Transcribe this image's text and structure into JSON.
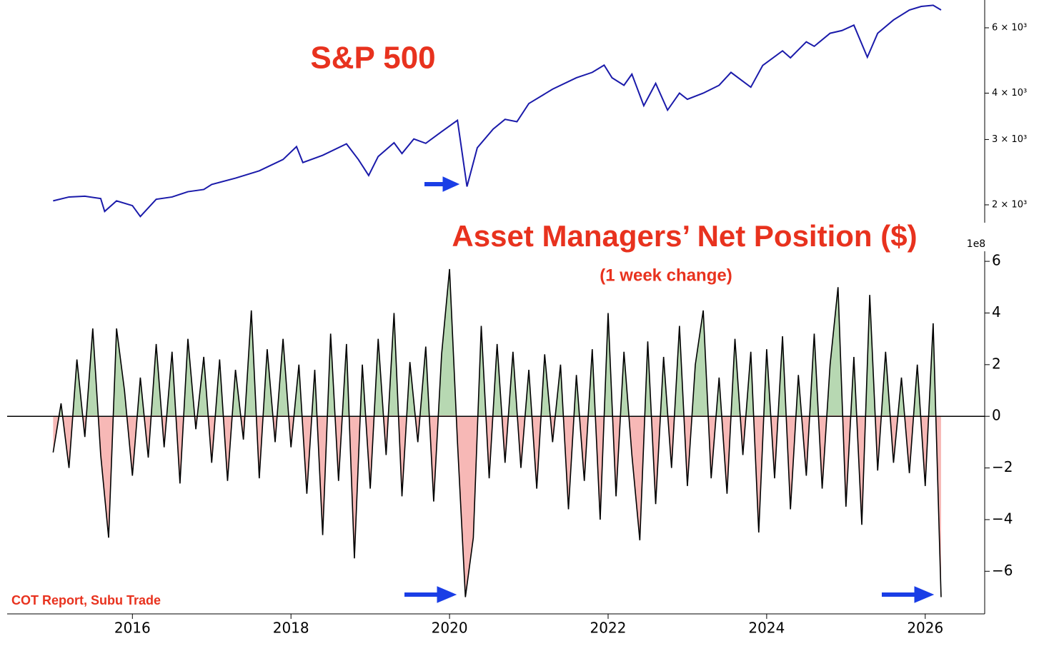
{
  "chart_data": [
    {
      "type": "line",
      "title": "S&P 500",
      "log_scale": true,
      "color": "#1a1aaa",
      "x": [
        2015.0,
        2015.2,
        2015.4,
        2015.6,
        2015.65,
        2015.8,
        2016.0,
        2016.1,
        2016.3,
        2016.5,
        2016.7,
        2016.9,
        2017.0,
        2017.3,
        2017.6,
        2017.9,
        2018.07,
        2018.15,
        2018.4,
        2018.7,
        2018.85,
        2018.98,
        2019.1,
        2019.3,
        2019.4,
        2019.55,
        2019.7,
        2019.9,
        2020.1,
        2020.22,
        2020.35,
        2020.55,
        2020.7,
        2020.85,
        2021.0,
        2021.3,
        2021.6,
        2021.8,
        2021.95,
        2022.05,
        2022.2,
        2022.3,
        2022.45,
        2022.6,
        2022.75,
        2022.9,
        2023.0,
        2023.2,
        2023.4,
        2023.55,
        2023.8,
        2023.95,
        2024.2,
        2024.3,
        2024.5,
        2024.6,
        2024.8,
        2024.95,
        2025.1,
        2025.27,
        2025.4,
        2025.6,
        2025.8,
        2025.95,
        2026.1,
        2026.2
      ],
      "values": [
        2050,
        2100,
        2110,
        2080,
        1920,
        2050,
        1990,
        1860,
        2070,
        2100,
        2170,
        2200,
        2270,
        2360,
        2470,
        2650,
        2870,
        2600,
        2720,
        2920,
        2650,
        2400,
        2700,
        2940,
        2750,
        3010,
        2930,
        3150,
        3380,
        2240,
        2850,
        3200,
        3400,
        3350,
        3750,
        4100,
        4400,
        4550,
        4760,
        4400,
        4200,
        4500,
        3700,
        4250,
        3600,
        4000,
        3850,
        4000,
        4200,
        4550,
        4150,
        4750,
        5200,
        4980,
        5500,
        5350,
        5800,
        5900,
        6100,
        5000,
        5800,
        6300,
        6700,
        6850,
        6900,
        6700
      ],
      "xlim": [
        2014.42,
        2026.75
      ],
      "ylim": [
        1790,
        7130
      ],
      "yticks": [
        {
          "value": 2000,
          "label": "2 × 10³"
        },
        {
          "value": 3000,
          "label": "3 × 10³"
        },
        {
          "value": 4000,
          "label": "4 × 10³"
        },
        {
          "value": 6000,
          "label": "6 × 10³"
        }
      ]
    },
    {
      "type": "area",
      "title": "Asset Managers’ Net Position ($)",
      "subtitle": "(1 week change)",
      "source": "COT Report, Subu Trade",
      "y_offset_label": "1e8",
      "line_color": "#000000",
      "positive_color": "#b7d8b2",
      "negative_color": "#f7b8b6",
      "x": [
        2015.0,
        2015.1,
        2015.2,
        2015.3,
        2015.4,
        2015.5,
        2015.6,
        2015.7,
        2015.8,
        2015.9,
        2016.0,
        2016.1,
        2016.2,
        2016.3,
        2016.4,
        2016.5,
        2016.6,
        2016.7,
        2016.8,
        2016.9,
        2017.0,
        2017.1,
        2017.2,
        2017.3,
        2017.4,
        2017.5,
        2017.6,
        2017.7,
        2017.8,
        2017.9,
        2018.0,
        2018.1,
        2018.2,
        2018.3,
        2018.4,
        2018.5,
        2018.6,
        2018.7,
        2018.8,
        2018.9,
        2019.0,
        2019.1,
        2019.2,
        2019.3,
        2019.4,
        2019.5,
        2019.6,
        2019.7,
        2019.8,
        2019.9,
        2020.0,
        2020.1,
        2020.2,
        2020.3,
        2020.4,
        2020.5,
        2020.6,
        2020.7,
        2020.8,
        2020.9,
        2021.0,
        2021.1,
        2021.2,
        2021.3,
        2021.4,
        2021.5,
        2021.6,
        2021.7,
        2021.8,
        2021.9,
        2022.0,
        2022.1,
        2022.2,
        2022.3,
        2022.4,
        2022.5,
        2022.6,
        2022.7,
        2022.8,
        2022.9,
        2023.0,
        2023.1,
        2023.2,
        2023.3,
        2023.4,
        2023.5,
        2023.6,
        2023.7,
        2023.8,
        2023.9,
        2024.0,
        2024.1,
        2024.2,
        2024.3,
        2024.4,
        2024.5,
        2024.6,
        2024.7,
        2024.8,
        2024.9,
        2025.0,
        2025.1,
        2025.2,
        2025.3,
        2025.4,
        2025.5,
        2025.6,
        2025.7,
        2025.8,
        2025.9,
        2026.0,
        2026.1,
        2026.2
      ],
      "values": [
        -1.4,
        0.5,
        -2.0,
        2.2,
        -0.8,
        3.4,
        -1.5,
        -4.7,
        3.4,
        1.0,
        -2.3,
        1.5,
        -1.6,
        2.8,
        -1.2,
        2.5,
        -2.6,
        3.0,
        -0.5,
        2.3,
        -1.8,
        2.2,
        -2.5,
        1.8,
        -0.9,
        4.1,
        -2.4,
        2.6,
        -1.0,
        3.0,
        -1.2,
        2.0,
        -3.0,
        1.8,
        -4.6,
        3.2,
        -2.5,
        2.8,
        -5.5,
        2.0,
        -2.8,
        3.0,
        -1.5,
        4.0,
        -3.1,
        2.1,
        -1.0,
        2.7,
        -3.3,
        2.4,
        5.7,
        -1.0,
        -7.0,
        -4.7,
        3.5,
        -2.4,
        2.8,
        -1.8,
        2.5,
        -2.0,
        1.8,
        -2.8,
        2.4,
        -1.0,
        2.0,
        -3.6,
        1.6,
        -2.5,
        2.6,
        -4.0,
        4.0,
        -3.1,
        2.5,
        -1.5,
        -4.8,
        2.9,
        -3.4,
        2.3,
        -2.0,
        3.5,
        -2.7,
        2.0,
        4.1,
        -2.4,
        1.5,
        -3.0,
        3.0,
        -1.5,
        2.5,
        -4.5,
        2.6,
        -2.4,
        3.1,
        -3.6,
        1.6,
        -2.3,
        3.2,
        -2.8,
        2.0,
        5.0,
        -3.5,
        2.3,
        -4.2,
        4.7,
        -2.1,
        2.5,
        -1.8,
        1.5,
        -2.2,
        2.0,
        -2.7,
        3.6,
        -7.0
      ],
      "xlim": [
        2014.42,
        2026.75
      ],
      "ylim": [
        -7.65,
        6.39
      ],
      "xticks": [
        2016,
        2018,
        2020,
        2022,
        2024,
        2026
      ],
      "yticks": [
        {
          "value": -6,
          "label": "−6"
        },
        {
          "value": -4,
          "label": "−4"
        },
        {
          "value": -2,
          "label": "−2"
        },
        0,
        2,
        4,
        6
      ]
    }
  ]
}
